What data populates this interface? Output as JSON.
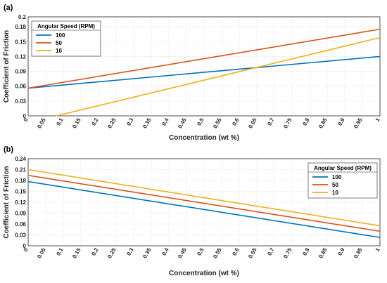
{
  "chart_data": [
    {
      "panel_label": "(a)",
      "type": "line",
      "xlabel": "Concentration (wt %)",
      "ylabel": "Coefficient of Friction",
      "xlim": [
        0,
        1
      ],
      "ylim": [
        0,
        0.2
      ],
      "x_ticks": [
        "0",
        "0.05",
        "0.1",
        "0.15",
        "0.2",
        "0.25",
        "0.3",
        "0.35",
        "0.4",
        "0.45",
        "0.5",
        "0.55",
        "0.6",
        "0.65",
        "0.7",
        "0.75",
        "0.8",
        "0.85",
        "0.9",
        "0.95",
        "1"
      ],
      "y_ticks": [
        "0",
        "0.03",
        "0.06",
        "0.09",
        "0.12",
        "0.15",
        "0.18",
        "0.2"
      ],
      "legend_title": "Angular Speed (RPM)",
      "legend_position": "top-left",
      "grid": true,
      "series": [
        {
          "name": "100",
          "color": "#0072BD",
          "x": [
            0,
            1
          ],
          "y": [
            0.056,
            0.12
          ]
        },
        {
          "name": "50",
          "color": "#D95319",
          "x": [
            0,
            1
          ],
          "y": [
            0.056,
            0.175
          ]
        },
        {
          "name": "10",
          "color": "#EDB120",
          "x": [
            0.08,
            1
          ],
          "y": [
            0.0,
            0.158
          ]
        }
      ]
    },
    {
      "panel_label": "(b)",
      "type": "line",
      "xlabel": "Concentration (wt %)",
      "ylabel": "Coefficient of Friction",
      "xlim": [
        0,
        1
      ],
      "ylim": [
        0,
        0.24
      ],
      "x_ticks": [
        "0",
        "0.05",
        "0.1",
        "0.15",
        "0.2",
        "0.25",
        "0.3",
        "0.35",
        "0.4",
        "0.45",
        "0.5",
        "0.55",
        "0.6",
        "0.65",
        "0.7",
        "0.75",
        "0.8",
        "0.85",
        "0.9",
        "0.95",
        "1"
      ],
      "y_ticks": [
        "0",
        "0.03",
        "0.06",
        "0.09",
        "0.12",
        "0.15",
        "0.18",
        "0.21",
        "0.24"
      ],
      "legend_title": "Angular Speed (RPM)",
      "legend_position": "top-right",
      "grid": true,
      "series": [
        {
          "name": "100",
          "color": "#0072BD",
          "x": [
            0,
            1
          ],
          "y": [
            0.177,
            0.023
          ]
        },
        {
          "name": "50",
          "color": "#D95319",
          "x": [
            0,
            1
          ],
          "y": [
            0.194,
            0.04
          ]
        },
        {
          "name": "10",
          "color": "#EDB120",
          "x": [
            0,
            1
          ],
          "y": [
            0.21,
            0.055
          ]
        }
      ]
    }
  ]
}
